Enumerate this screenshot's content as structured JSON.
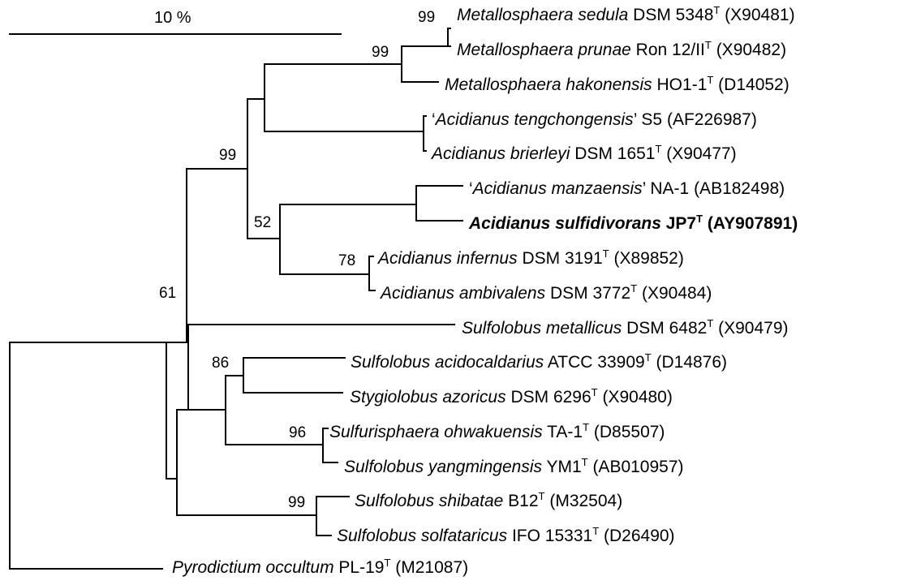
{
  "scale_label": "10 %",
  "taxa": [
    {
      "italic": "Metallosphaera sedula",
      "strain": "DSM 5348",
      "sup": "T",
      "acc": "(X90481)"
    },
    {
      "italic": "Metallosphaera prunae",
      "strain": "Ron 12/II",
      "sup": "T",
      "acc": "(X90482)"
    },
    {
      "italic": "Metallosphaera hakonensis",
      "strain": "HO1-1",
      "sup": "T",
      "acc": "(D14052)"
    },
    {
      "prefix": "‘",
      "italic": "Acidianus tengchongensis",
      "suffix": "’",
      "strain": "S5",
      "sup": "",
      "acc": "(AF226987)"
    },
    {
      "italic": "Acidianus brierleyi",
      "strain": "DSM 1651",
      "sup": "T",
      "acc": "(X90477)"
    },
    {
      "prefix": "‘",
      "italic": "Acidianus manzaensis",
      "suffix": "’",
      "strain": "NA-1",
      "sup": "",
      "acc": "(AB182498)"
    },
    {
      "italic": "Acidianus sulfidivorans",
      "strain": "JP7",
      "sup": "T",
      "acc": "(AY907891)",
      "bold": true
    },
    {
      "italic": "Acidianus infernus",
      "strain": "DSM 3191",
      "sup": "T",
      "acc": "(X89852)"
    },
    {
      "italic": "Acidianus ambivalens",
      "strain": "DSM 3772",
      "sup": "T",
      "acc": "(X90484)"
    },
    {
      "italic": "Sulfolobus metallicus",
      "strain": "DSM 6482",
      "sup": "T",
      "acc": "(X90479)"
    },
    {
      "italic": "Sulfolobus acidocaldarius",
      "strain": "ATCC 33909",
      "sup": "T",
      "acc": "(D14876)"
    },
    {
      "italic": "Stygiolobus azoricus",
      "strain": "DSM 6296",
      "sup": "T",
      "acc": "(X90480)"
    },
    {
      "italic": "Sulfurisphaera ohwakuensis",
      "strain": "TA-1",
      "sup": "T",
      "acc": "(D85507)"
    },
    {
      "italic": "Sulfolobus yangmingensis",
      "strain": "YM1",
      "sup": "T",
      "acc": "(AB010957)"
    },
    {
      "italic": "Sulfolobus shibatae",
      "strain": "B12",
      "sup": "T",
      "acc": "(M32504)"
    },
    {
      "italic": "Sulfolobus solfataricus",
      "strain": "IFO 15331",
      "sup": "T",
      "acc": "(D26490)"
    },
    {
      "italic": "Pyrodictium occultum",
      "strain": "PL-19",
      "sup": "T",
      "acc": "(M21087)"
    }
  ],
  "bootstrap": [
    "99",
    "99",
    "99",
    "52",
    "78",
    "61",
    "86",
    "96",
    "99"
  ]
}
